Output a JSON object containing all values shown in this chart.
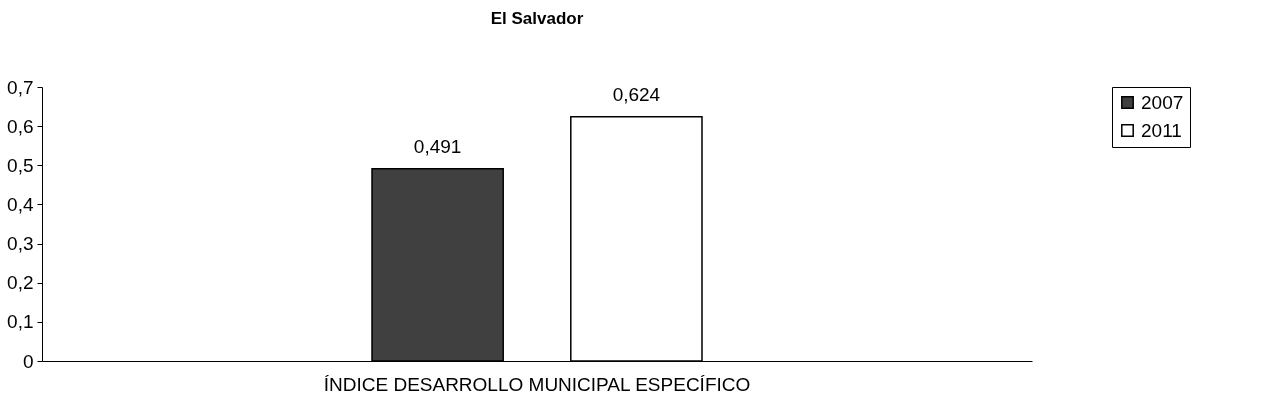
{
  "chart_data": {
    "type": "bar",
    "title": "El Salvador",
    "categories": [
      "ÍNDICE DESARROLLO MUNICIPAL ESPECÍFICO"
    ],
    "series": [
      {
        "name": "2007",
        "color": "#404040",
        "values": [
          0.491
        ],
        "value_labels": [
          "0,491"
        ]
      },
      {
        "name": "2011",
        "color": "#ffffff",
        "values": [
          0.624
        ],
        "value_labels": [
          "0,624"
        ]
      }
    ],
    "ylim": [
      0,
      0.7
    ],
    "yticks": [
      0,
      {
        "value": 0.1,
        "label": "0,1"
      },
      {
        "value": 0.2,
        "label": "0,2"
      },
      {
        "value": 0.3,
        "label": "0,3"
      },
      {
        "value": 0.4,
        "label": "0,4"
      },
      {
        "value": 0.5,
        "label": "0,5"
      },
      {
        "value": 0.6,
        "label": "0,6"
      },
      {
        "value": 0.7,
        "label": "0,7"
      }
    ],
    "grid": false,
    "legend": "right"
  }
}
